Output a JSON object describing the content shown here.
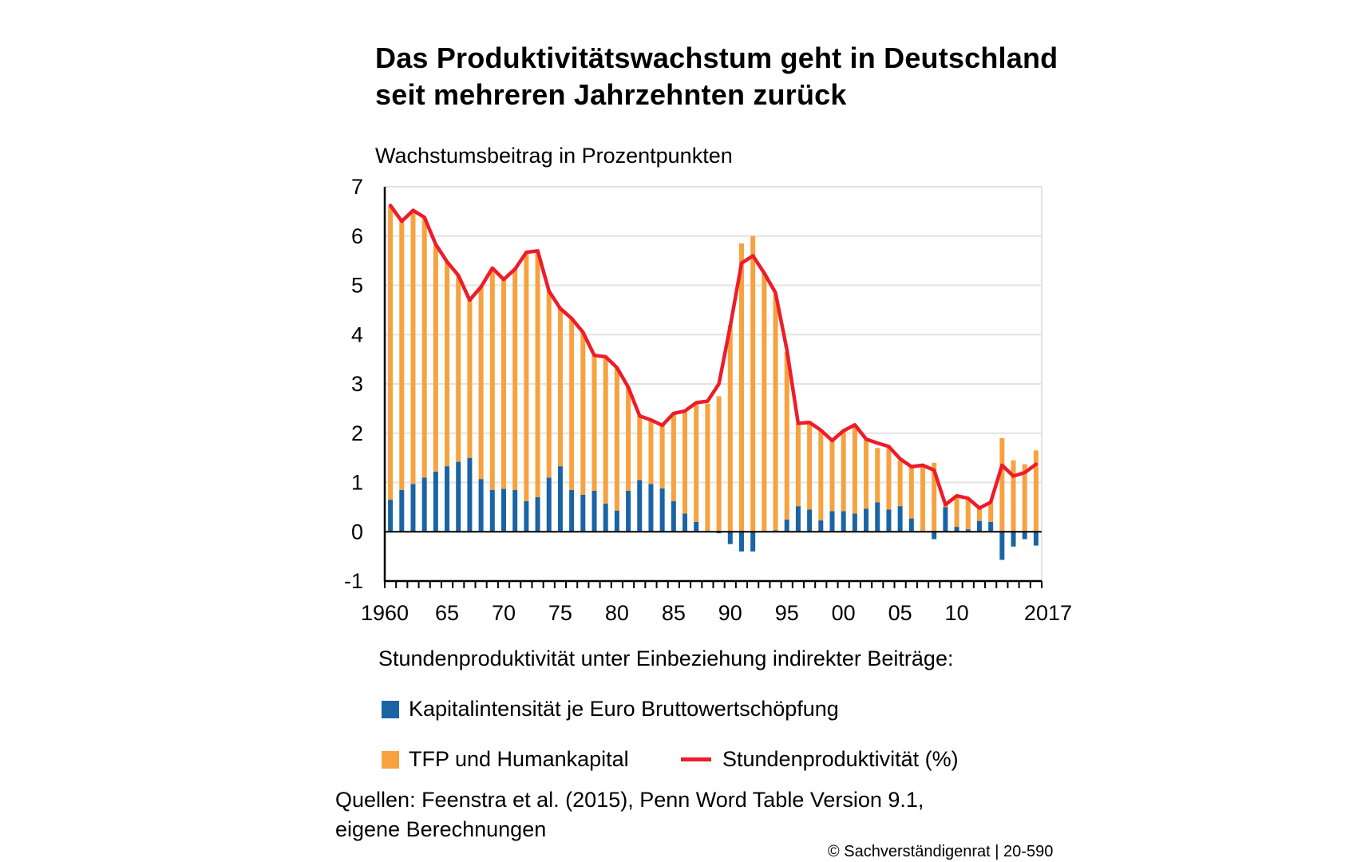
{
  "title": {
    "line1": "Das Produktivitätswachstum geht in Deutschland",
    "line2": "seit mehreren Jahrzehnten zurück"
  },
  "legend": {
    "heading": "Stundenproduktivität unter Einbeziehung indirekter Beiträge:",
    "capital": "Kapitalintensität je Euro Bruttowertschöpfung",
    "tfp": "TFP und Humankapital",
    "productivity": "Stundenproduktivität (%)"
  },
  "source": {
    "line1": "Quellen: Feenstra et al. (2015), Penn Word Table Version 9.1,",
    "line2": "eigene Berechnungen"
  },
  "credit": "© Sachverständigenrat | 20-590",
  "colors": {
    "capital": "#1a64a5",
    "tfp": "#f7a23f",
    "productivity": "#ee1c2a",
    "grid": "#e3e3e3"
  },
  "chart_data": {
    "type": "bar",
    "stacked": true,
    "ylabel": "Wachstumsbeitrag in Prozentpunkten",
    "ylim": [
      -1,
      7
    ],
    "yticks": [
      "-1",
      "0",
      "1",
      "2",
      "3",
      "4",
      "5",
      "6",
      "7"
    ],
    "xtick_labels": [
      {
        "year": 1960,
        "label": "1960"
      },
      {
        "year": 1965,
        "label": "65"
      },
      {
        "year": 1970,
        "label": "70"
      },
      {
        "year": 1975,
        "label": "75"
      },
      {
        "year": 1980,
        "label": "80"
      },
      {
        "year": 1985,
        "label": "85"
      },
      {
        "year": 1990,
        "label": "90"
      },
      {
        "year": 1995,
        "label": "95"
      },
      {
        "year": 2000,
        "label": "00"
      },
      {
        "year": 2005,
        "label": "05"
      },
      {
        "year": 2010,
        "label": "10"
      },
      {
        "year": 2017,
        "label": "2017"
      }
    ],
    "grid": true,
    "x": [
      1960,
      1961,
      1962,
      1963,
      1964,
      1965,
      1966,
      1967,
      1968,
      1969,
      1970,
      1971,
      1972,
      1973,
      1974,
      1975,
      1976,
      1977,
      1978,
      1979,
      1980,
      1981,
      1982,
      1983,
      1984,
      1985,
      1986,
      1987,
      1988,
      1989,
      1990,
      1991,
      1992,
      1993,
      1994,
      1995,
      1996,
      1997,
      1998,
      1999,
      2000,
      2001,
      2002,
      2003,
      2004,
      2005,
      2006,
      2007,
      2008,
      2009,
      2010,
      2011,
      2012,
      2013,
      2014,
      2015,
      2016,
      2017
    ],
    "series": [
      {
        "name": "Kapitalintensität je Euro Bruttowertschöpfung",
        "kind": "bar",
        "values": [
          0.65,
          0.85,
          0.97,
          1.1,
          1.22,
          1.33,
          1.42,
          1.5,
          1.07,
          0.85,
          0.87,
          0.85,
          0.62,
          0.7,
          1.1,
          1.33,
          0.85,
          0.75,
          0.83,
          0.57,
          0.43,
          0.83,
          1.05,
          0.97,
          0.88,
          0.62,
          0.37,
          0.2,
          0.0,
          -0.03,
          -0.25,
          -0.4,
          -0.4,
          0.0,
          0.03,
          0.25,
          0.52,
          0.45,
          0.23,
          0.42,
          0.42,
          0.37,
          0.47,
          0.6,
          0.45,
          0.52,
          0.27,
          0.0,
          -0.15,
          0.5,
          0.1,
          0.05,
          0.22,
          0.2,
          -0.57,
          -0.3,
          -0.15,
          -0.28
        ]
      },
      {
        "name": "TFP und Humankapital",
        "kind": "bar",
        "values": [
          5.95,
          5.45,
          5.55,
          5.28,
          4.6,
          4.15,
          3.78,
          3.2,
          3.9,
          4.5,
          4.25,
          4.5,
          5.05,
          5.0,
          3.78,
          3.2,
          3.48,
          3.3,
          2.75,
          2.98,
          2.9,
          2.1,
          1.3,
          1.3,
          1.28,
          1.78,
          2.08,
          2.4,
          2.6,
          2.75,
          4.2,
          5.85,
          6.0,
          5.25,
          4.8,
          3.4,
          1.68,
          1.77,
          1.83,
          1.43,
          1.65,
          1.8,
          1.4,
          1.1,
          1.25,
          0.93,
          1.05,
          1.33,
          1.4,
          0.05,
          0.6,
          0.63,
          0.27,
          0.4,
          1.9,
          1.45,
          1.37,
          1.65
        ]
      },
      {
        "name": "Stundenproduktivität (%)",
        "kind": "line",
        "values": [
          6.62,
          6.3,
          6.52,
          6.38,
          5.83,
          5.48,
          5.2,
          4.7,
          4.97,
          5.35,
          5.12,
          5.33,
          5.67,
          5.7,
          4.88,
          4.53,
          4.33,
          4.05,
          3.58,
          3.55,
          3.33,
          2.93,
          2.35,
          2.27,
          2.16,
          2.4,
          2.45,
          2.62,
          2.65,
          3.0,
          4.17,
          5.45,
          5.6,
          5.25,
          4.85,
          3.7,
          2.2,
          2.22,
          2.06,
          1.85,
          2.05,
          2.17,
          1.88,
          1.8,
          1.73,
          1.48,
          1.32,
          1.35,
          1.25,
          0.55,
          0.73,
          0.68,
          0.48,
          0.6,
          1.35,
          1.13,
          1.2,
          1.37
        ]
      }
    ]
  }
}
